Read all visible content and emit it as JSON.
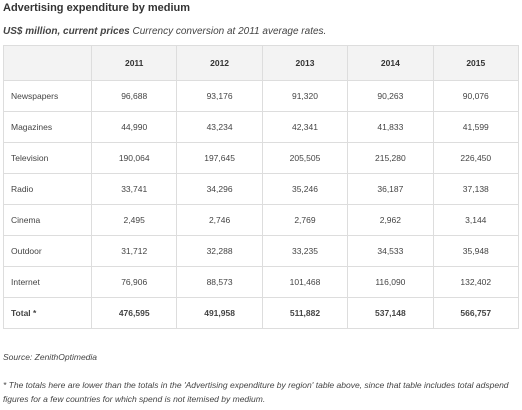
{
  "header": {
    "title": "Advertising expenditure by medium",
    "subtitle_units": "US$ million, current prices",
    "subtitle_note": "Currency conversion at 2011 average rates."
  },
  "table": {
    "columns": [
      "2011",
      "2012",
      "2013",
      "2014",
      "2015"
    ],
    "rows": [
      [
        "Newspapers",
        "96,688",
        "93,176",
        "91,320",
        "90,263",
        "90,076"
      ],
      [
        "Magazines",
        "44,990",
        "43,234",
        "42,341",
        "41,833",
        "41,599"
      ],
      [
        "Television",
        "190,064",
        "197,645",
        "205,505",
        "215,280",
        "226,450"
      ],
      [
        "Radio",
        "33,741",
        "34,296",
        "35,246",
        "36,187",
        "37,138"
      ],
      [
        "Cinema",
        "2,495",
        "2,746",
        "2,769",
        "2,962",
        "3,144"
      ],
      [
        "Outdoor",
        "31,712",
        "32,288",
        "33,235",
        "34,533",
        "35,948"
      ],
      [
        "Internet",
        "76,906",
        "88,573",
        "101,468",
        "116,090",
        "132,402"
      ],
      [
        "Total *",
        "476,595",
        "491,958",
        "511,882",
        "537,148",
        "566,757"
      ]
    ]
  },
  "footer": {
    "source": "Source: ZenithOptimedia",
    "note": "* The totals here are lower than the totals in the 'Advertising expenditure by region' table above, since that table includes total adspend figures for a few countries for which spend is not itemised by medium."
  }
}
